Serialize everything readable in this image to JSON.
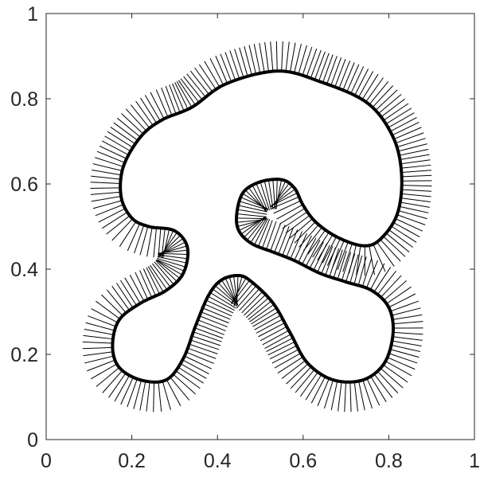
{
  "chart_data": {
    "type": "line",
    "title": "",
    "xlabel": "",
    "ylabel": "",
    "xlim": [
      0,
      1
    ],
    "ylim": [
      0,
      1
    ],
    "grid": false,
    "legend": "none",
    "x_ticks": [
      0,
      0.2,
      0.4,
      0.6,
      0.8,
      1
    ],
    "y_ticks": [
      0,
      0.2,
      0.4,
      0.6,
      0.8,
      1
    ],
    "x_tick_labels": [
      "0",
      "0.2",
      "0.4",
      "0.6",
      "0.8",
      "1"
    ],
    "y_tick_labels": [
      "0",
      "0.2",
      "0.4",
      "0.6",
      "0.8",
      "1"
    ],
    "colors": {
      "curve": "#000000",
      "normals": "#000000",
      "axes": "#262626",
      "background": "#ffffff"
    },
    "normal_length": 0.07,
    "curves": [
      {
        "role": "outer-boundary",
        "points": [
          [
            0.34,
            0.78
          ],
          [
            0.42,
            0.835
          ],
          [
            0.54,
            0.865
          ],
          [
            0.64,
            0.84
          ],
          [
            0.75,
            0.79
          ],
          [
            0.81,
            0.71
          ],
          [
            0.83,
            0.62
          ],
          [
            0.82,
            0.53
          ],
          [
            0.78,
            0.47
          ],
          [
            0.74,
            0.455
          ],
          [
            0.68,
            0.475
          ],
          [
            0.63,
            0.51
          ],
          [
            0.6,
            0.55
          ],
          [
            0.58,
            0.59
          ],
          [
            0.55,
            0.61
          ],
          [
            0.5,
            0.605
          ],
          [
            0.46,
            0.58
          ],
          [
            0.445,
            0.53
          ],
          [
            0.45,
            0.49
          ],
          [
            0.48,
            0.46
          ],
          [
            0.53,
            0.44
          ],
          [
            0.58,
            0.42
          ],
          [
            0.64,
            0.39
          ],
          [
            0.7,
            0.37
          ],
          [
            0.76,
            0.35
          ],
          [
            0.8,
            0.31
          ],
          [
            0.81,
            0.25
          ],
          [
            0.79,
            0.18
          ],
          [
            0.74,
            0.14
          ],
          [
            0.67,
            0.14
          ],
          [
            0.61,
            0.18
          ],
          [
            0.57,
            0.25
          ],
          [
            0.53,
            0.32
          ],
          [
            0.48,
            0.37
          ],
          [
            0.45,
            0.385
          ],
          [
            0.41,
            0.375
          ],
          [
            0.38,
            0.34
          ],
          [
            0.35,
            0.27
          ],
          [
            0.32,
            0.19
          ],
          [
            0.28,
            0.14
          ],
          [
            0.22,
            0.14
          ],
          [
            0.17,
            0.17
          ],
          [
            0.155,
            0.22
          ],
          [
            0.17,
            0.28
          ],
          [
            0.22,
            0.32
          ],
          [
            0.28,
            0.35
          ],
          [
            0.32,
            0.39
          ],
          [
            0.33,
            0.45
          ],
          [
            0.3,
            0.49
          ],
          [
            0.24,
            0.5
          ],
          [
            0.2,
            0.52
          ],
          [
            0.175,
            0.57
          ],
          [
            0.18,
            0.64
          ],
          [
            0.22,
            0.71
          ],
          [
            0.27,
            0.75
          ]
        ]
      }
    ]
  }
}
